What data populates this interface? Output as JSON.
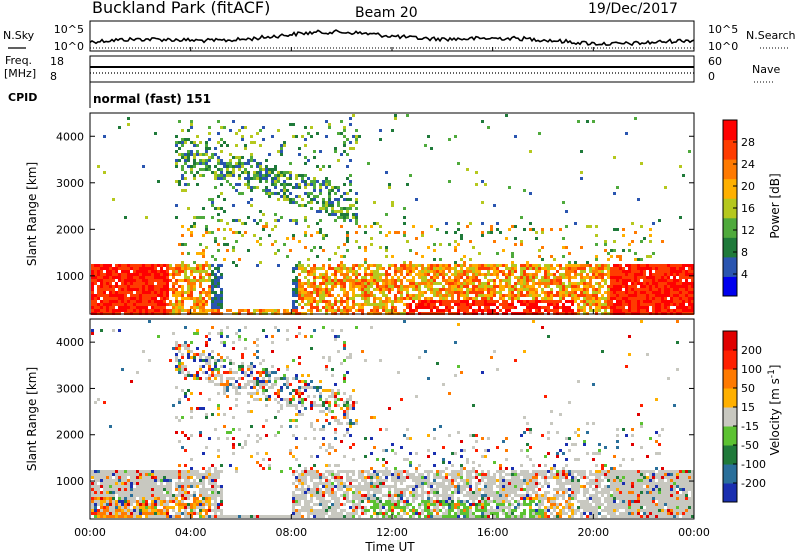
{
  "header": {
    "station": "Buckland Park (fitACF)",
    "beam": "Beam 20",
    "date": "19/Dec/2017"
  },
  "summary": {
    "nsky_label": "N.Sky",
    "nsearch_label": "N.Search",
    "freq_label_line1": "Freq.",
    "freq_label_line2": "[MHz]",
    "nave_label": "Nave",
    "cpid_label": "CPID",
    "cpid_value": "normal (fast) 151",
    "nsky_ticks": [
      "10^5",
      "10^0"
    ],
    "nsearch_ticks": [
      "10^5",
      "10^0"
    ],
    "freq_ticks": [
      "18",
      "8"
    ],
    "nave_ticks": [
      "60",
      "0"
    ]
  },
  "chart_data": [
    {
      "type": "heatmap",
      "name": "power",
      "ylabel": "Slant Range [km]",
      "xlabel": "",
      "ylim": [
        180,
        4500
      ],
      "yticks": [
        "4000",
        "3000",
        "2000",
        "1000"
      ],
      "ytick_values": [
        4000,
        3000,
        2000,
        1000
      ],
      "colorbar": {
        "label": "Power [dB]",
        "ticks": [
          "28",
          "24",
          "20",
          "16",
          "12",
          "8",
          "4"
        ],
        "tick_values": [
          28,
          24,
          20,
          16,
          12,
          8,
          4
        ],
        "range": [
          0,
          32
        ],
        "colors": [
          "#0000ee",
          "#2a55b0",
          "#1f7a3a",
          "#4faa3c",
          "#b5c81e",
          "#ffb000",
          "#ff7a00",
          "#ff3c00",
          "#ff0000"
        ]
      }
    },
    {
      "type": "heatmap",
      "name": "velocity",
      "ylabel": "Slant Range [km]",
      "xlabel": "Time UT",
      "ylim": [
        180,
        4500
      ],
      "yticks": [
        "4000",
        "3000",
        "2000",
        "1000"
      ],
      "ytick_values": [
        4000,
        3000,
        2000,
        1000
      ],
      "xticks": [
        "00:00",
        "04:00",
        "08:00",
        "12:00",
        "16:00",
        "20:00",
        "00:00"
      ],
      "xtick_hours": [
        0,
        4,
        8,
        12,
        16,
        20,
        24
      ],
      "colorbar": {
        "label": "Velocity [m s^-1]",
        "ticks": [
          "200",
          "100",
          "50",
          "15",
          "-15",
          "-50",
          "-100",
          "-200"
        ],
        "colors": [
          "#1a2fb0",
          "#2a6f9a",
          "#207a3a",
          "#5cc232",
          "#c8c8c0",
          "#ffb000",
          "#ff7a00",
          "#ff2000",
          "#e00000"
        ]
      }
    }
  ]
}
